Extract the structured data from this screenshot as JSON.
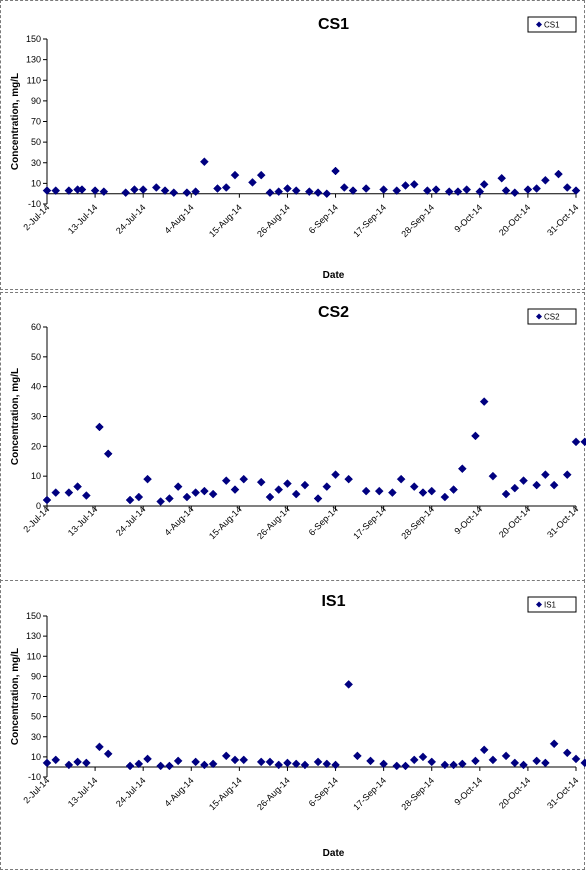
{
  "chart_data": [
    {
      "type": "scatter",
      "title": "CS1",
      "xlabel": "Date",
      "ylabel": "Concentration, mg/L",
      "legend": "top-right",
      "grid": false,
      "ylim": [
        -10,
        150
      ],
      "yticks": [
        -10,
        10,
        30,
        50,
        70,
        90,
        110,
        130,
        150
      ],
      "xlim": [
        "2014-07-02",
        "2014-10-31"
      ],
      "xtick_labels": [
        "2-Jul-14",
        "13-Jul-14",
        "24-Jul-14",
        "4-Aug-14",
        "15-Aug-14",
        "26-Aug-14",
        "6-Sep-14",
        "17-Sep-14",
        "28-Sep-14",
        "9-Oct-14",
        "20-Oct-14",
        "31-Oct-14"
      ],
      "xtick_dates": [
        "2014-07-02",
        "2014-07-13",
        "2014-07-24",
        "2014-08-04",
        "2014-08-15",
        "2014-08-26",
        "2014-09-06",
        "2014-09-17",
        "2014-09-28",
        "2014-10-09",
        "2014-10-20",
        "2014-10-31"
      ],
      "series": [
        {
          "name": "CS1",
          "color": "#000080",
          "x": [
            "2014-07-02",
            "2014-07-04",
            "2014-07-07",
            "2014-07-09",
            "2014-07-10",
            "2014-07-13",
            "2014-07-15",
            "2014-07-20",
            "2014-07-22",
            "2014-07-24",
            "2014-07-27",
            "2014-07-29",
            "2014-07-31",
            "2014-08-03",
            "2014-08-05",
            "2014-08-07",
            "2014-08-10",
            "2014-08-12",
            "2014-08-14",
            "2014-08-18",
            "2014-08-20",
            "2014-08-22",
            "2014-08-24",
            "2014-08-26",
            "2014-08-28",
            "2014-08-31",
            "2014-09-02",
            "2014-09-04",
            "2014-09-06",
            "2014-09-08",
            "2014-09-10",
            "2014-09-13",
            "2014-09-17",
            "2014-09-20",
            "2014-09-22",
            "2014-09-24",
            "2014-09-27",
            "2014-09-29",
            "2014-10-02",
            "2014-10-04",
            "2014-10-06",
            "2014-10-09",
            "2014-10-10",
            "2014-10-14",
            "2014-10-15",
            "2014-10-17",
            "2014-10-20",
            "2014-10-22",
            "2014-10-24",
            "2014-10-27",
            "2014-10-29",
            "2014-10-31"
          ],
          "y": [
            3,
            3,
            3,
            4,
            4,
            3,
            2,
            1,
            4,
            4,
            6,
            3,
            1,
            1,
            2,
            31,
            5,
            6,
            18,
            11,
            18,
            1,
            2,
            5,
            3,
            2,
            1,
            0,
            22,
            6,
            3,
            5,
            4,
            3,
            8,
            9,
            3,
            4,
            2,
            2,
            4,
            2,
            9,
            15,
            3,
            1,
            4,
            5,
            13,
            19,
            6,
            3
          ]
        }
      ]
    },
    {
      "type": "scatter",
      "title": "CS2",
      "xlabel": "",
      "ylabel": "Concentration, mg/L",
      "legend": "top-right",
      "grid": false,
      "ylim": [
        0,
        60
      ],
      "yticks": [
        0,
        10,
        20,
        30,
        40,
        50,
        60
      ],
      "xlim": [
        "2014-07-02",
        "2014-10-31"
      ],
      "xtick_labels": [
        "2-Jul-14",
        "13-Jul-14",
        "24-Jul-14",
        "4-Aug-14",
        "15-Aug-14",
        "26-Aug-14",
        "6-Sep-14",
        "17-Sep-14",
        "28-Sep-14",
        "9-Oct-14",
        "20-Oct-14",
        "31-Oct-14"
      ],
      "xtick_dates": [
        "2014-07-02",
        "2014-07-13",
        "2014-07-24",
        "2014-08-04",
        "2014-08-15",
        "2014-08-26",
        "2014-09-06",
        "2014-09-17",
        "2014-09-28",
        "2014-10-09",
        "2014-10-20",
        "2014-10-31"
      ],
      "series": [
        {
          "name": "CS2",
          "color": "#000080",
          "x": [
            "2014-07-02",
            "2014-07-04",
            "2014-07-07",
            "2014-07-09",
            "2014-07-11",
            "2014-07-14",
            "2014-07-16",
            "2014-07-21",
            "2014-07-23",
            "2014-07-25",
            "2014-07-28",
            "2014-07-30",
            "2014-08-01",
            "2014-08-03",
            "2014-08-05",
            "2014-08-07",
            "2014-08-09",
            "2014-08-12",
            "2014-08-14",
            "2014-08-16",
            "2014-08-20",
            "2014-08-22",
            "2014-08-24",
            "2014-08-26",
            "2014-08-28",
            "2014-08-30",
            "2014-09-02",
            "2014-09-04",
            "2014-09-06",
            "2014-09-09",
            "2014-09-13",
            "2014-09-16",
            "2014-09-19",
            "2014-09-21",
            "2014-09-24",
            "2014-09-26",
            "2014-09-28",
            "2014-10-01",
            "2014-10-03",
            "2014-10-05",
            "2014-10-08",
            "2014-10-10",
            "2014-10-12",
            "2014-10-15",
            "2014-10-17",
            "2014-10-19",
            "2014-10-22",
            "2014-10-24",
            "2014-10-26",
            "2014-10-29",
            "2014-10-31",
            "2014-11-02"
          ],
          "y": [
            2,
            4.5,
            4.5,
            6.5,
            3.5,
            26.5,
            17.5,
            2,
            3,
            9,
            1.5,
            2.5,
            6.5,
            3,
            4.5,
            5,
            4,
            8.5,
            5.5,
            9,
            8,
            3,
            5.5,
            7.5,
            4,
            7,
            2.5,
            6.5,
            10.5,
            9,
            5,
            5,
            4.5,
            9,
            6.5,
            4.5,
            5,
            3,
            5.5,
            12.5,
            23.5,
            35,
            10,
            4,
            6,
            8.5,
            7,
            10.5,
            7,
            10.5,
            21.5,
            21.5
          ]
        }
      ]
    },
    {
      "type": "scatter",
      "title": "IS1",
      "xlabel": "Date",
      "ylabel": "Concentration, mg/L",
      "legend": "top-right",
      "grid": false,
      "ylim": [
        -10,
        150
      ],
      "yticks": [
        -10,
        10,
        30,
        50,
        70,
        90,
        110,
        130,
        150
      ],
      "xlim": [
        "2014-07-02",
        "2014-10-31"
      ],
      "xtick_labels": [
        "2-Jul-14",
        "13-Jul-14",
        "24-Jul-14",
        "4-Aug-14",
        "15-Aug-14",
        "26-Aug-14",
        "6-Sep-14",
        "17-Sep-14",
        "28-Sep-14",
        "9-Oct-14",
        "20-Oct-14",
        "31-Oct-14"
      ],
      "xtick_dates": [
        "2014-07-02",
        "2014-07-13",
        "2014-07-24",
        "2014-08-04",
        "2014-08-15",
        "2014-08-26",
        "2014-09-06",
        "2014-09-17",
        "2014-09-28",
        "2014-10-09",
        "2014-10-20",
        "2014-10-31"
      ],
      "series": [
        {
          "name": "IS1",
          "color": "#000080",
          "x": [
            "2014-07-02",
            "2014-07-04",
            "2014-07-07",
            "2014-07-09",
            "2014-07-11",
            "2014-07-14",
            "2014-07-16",
            "2014-07-21",
            "2014-07-23",
            "2014-07-25",
            "2014-07-28",
            "2014-07-30",
            "2014-08-01",
            "2014-08-05",
            "2014-08-07",
            "2014-08-09",
            "2014-08-12",
            "2014-08-14",
            "2014-08-16",
            "2014-08-20",
            "2014-08-22",
            "2014-08-24",
            "2014-08-26",
            "2014-08-28",
            "2014-08-30",
            "2014-09-02",
            "2014-09-04",
            "2014-09-06",
            "2014-09-09",
            "2014-09-11",
            "2014-09-14",
            "2014-09-17",
            "2014-09-20",
            "2014-09-22",
            "2014-09-24",
            "2014-09-26",
            "2014-09-28",
            "2014-10-01",
            "2014-10-03",
            "2014-10-05",
            "2014-10-08",
            "2014-10-10",
            "2014-10-12",
            "2014-10-15",
            "2014-10-17",
            "2014-10-19",
            "2014-10-22",
            "2014-10-24",
            "2014-10-26",
            "2014-10-29",
            "2014-10-31",
            "2014-11-02"
          ],
          "y": [
            4,
            7,
            2,
            5,
            4,
            20,
            13,
            1,
            3,
            8,
            1,
            1,
            6,
            5,
            2,
            3,
            11,
            7,
            7,
            5,
            5,
            2,
            4,
            3,
            2,
            5,
            3,
            2,
            82,
            11,
            6,
            3,
            1,
            1,
            7,
            10,
            5,
            2,
            2,
            3,
            6,
            17,
            7,
            11,
            4,
            2,
            6,
            4,
            23,
            14,
            8,
            4
          ]
        }
      ]
    }
  ]
}
